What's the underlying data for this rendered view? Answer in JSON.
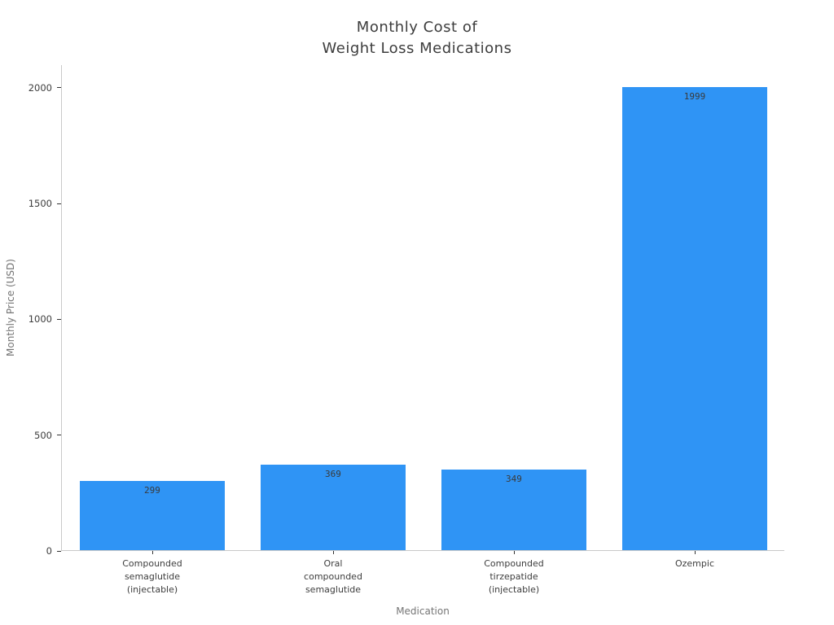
{
  "chart_data": {
    "type": "bar",
    "title_lines": [
      "Monthly Cost of",
      "Weight Loss Medications"
    ],
    "title": "Monthly Cost of Weight Loss Medications",
    "xlabel": "Medication",
    "ylabel": "Monthly Price (USD)",
    "categories": [
      "Compounded semaglutide (injectable)",
      "Oral compounded semaglutide",
      "Compounded tirzepatide (injectable)",
      "Ozempic"
    ],
    "category_label_lines": [
      [
        "Compounded",
        "semaglutide",
        "(injectable)"
      ],
      [
        "Oral",
        "compounded",
        "semaglutide"
      ],
      [
        "Compounded",
        "tirzepatide",
        "(injectable)"
      ],
      [
        "Ozempic"
      ]
    ],
    "values": [
      299,
      369,
      349,
      1999
    ],
    "bar_labels": [
      "299",
      "369",
      "349",
      "1999"
    ],
    "yticks": [
      0,
      500,
      1000,
      1500,
      2000
    ],
    "ylim": [
      0,
      2098
    ],
    "grid": false,
    "legend": false,
    "colors": {
      "bar": "#2f94f5",
      "axis_line": "#c9c9c9",
      "tick_mark": "#333333",
      "tick_label": "#3d3d3d",
      "axis_label": "#757575",
      "title": "#3d3d3d",
      "bar_value_label": "#3a3a3a",
      "background": "#ffffff"
    }
  }
}
